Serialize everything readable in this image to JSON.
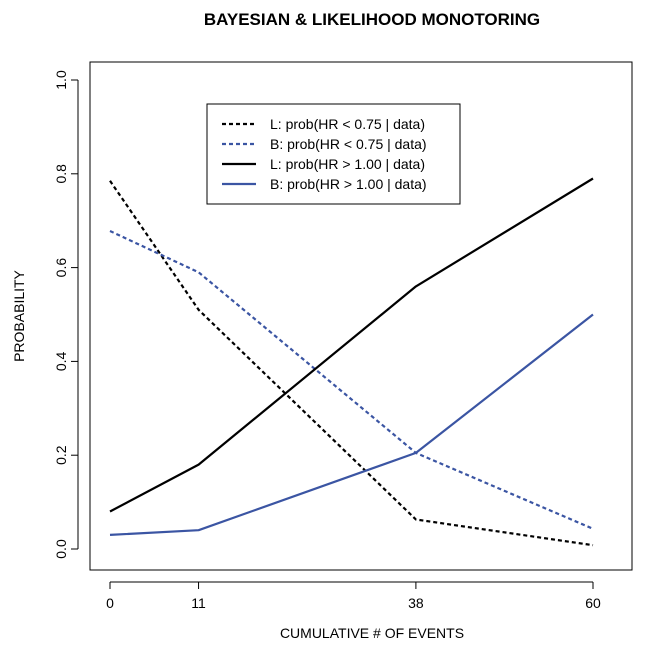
{
  "chart_data": {
    "type": "line",
    "title": "BAYESIAN & LIKELIHOOD MONOTORING",
    "xlabel": "CUMULATIVE # OF EVENTS",
    "ylabel": "PROBABILITY",
    "x": [
      0,
      11,
      38,
      60
    ],
    "x_ticks": [
      "0",
      "11",
      "38",
      "60"
    ],
    "ylim": [
      0,
      1
    ],
    "y_ticks": [
      "0.0",
      "0.2",
      "0.4",
      "0.6",
      "0.8",
      "1.0"
    ],
    "grid": false,
    "legend_position": "top-center",
    "series": [
      {
        "name": "L: prob(HR < 0.75 | data)",
        "values": [
          0.785,
          0.51,
          0.063,
          0.008
        ],
        "color": "#000000",
        "dashed": true
      },
      {
        "name": "B: prob(HR < 0.75 | data)",
        "values": [
          0.678,
          0.59,
          0.205,
          0.043
        ],
        "color": "#3b55a3",
        "dashed": true
      },
      {
        "name": "L: prob(HR > 1.00 | data)",
        "values": [
          0.08,
          0.18,
          0.56,
          0.79
        ],
        "color": "#000000",
        "dashed": false
      },
      {
        "name": "B: prob(HR > 1.00 | data)",
        "values": [
          0.03,
          0.04,
          0.205,
          0.5
        ],
        "color": "#3b55a3",
        "dashed": false
      }
    ]
  }
}
